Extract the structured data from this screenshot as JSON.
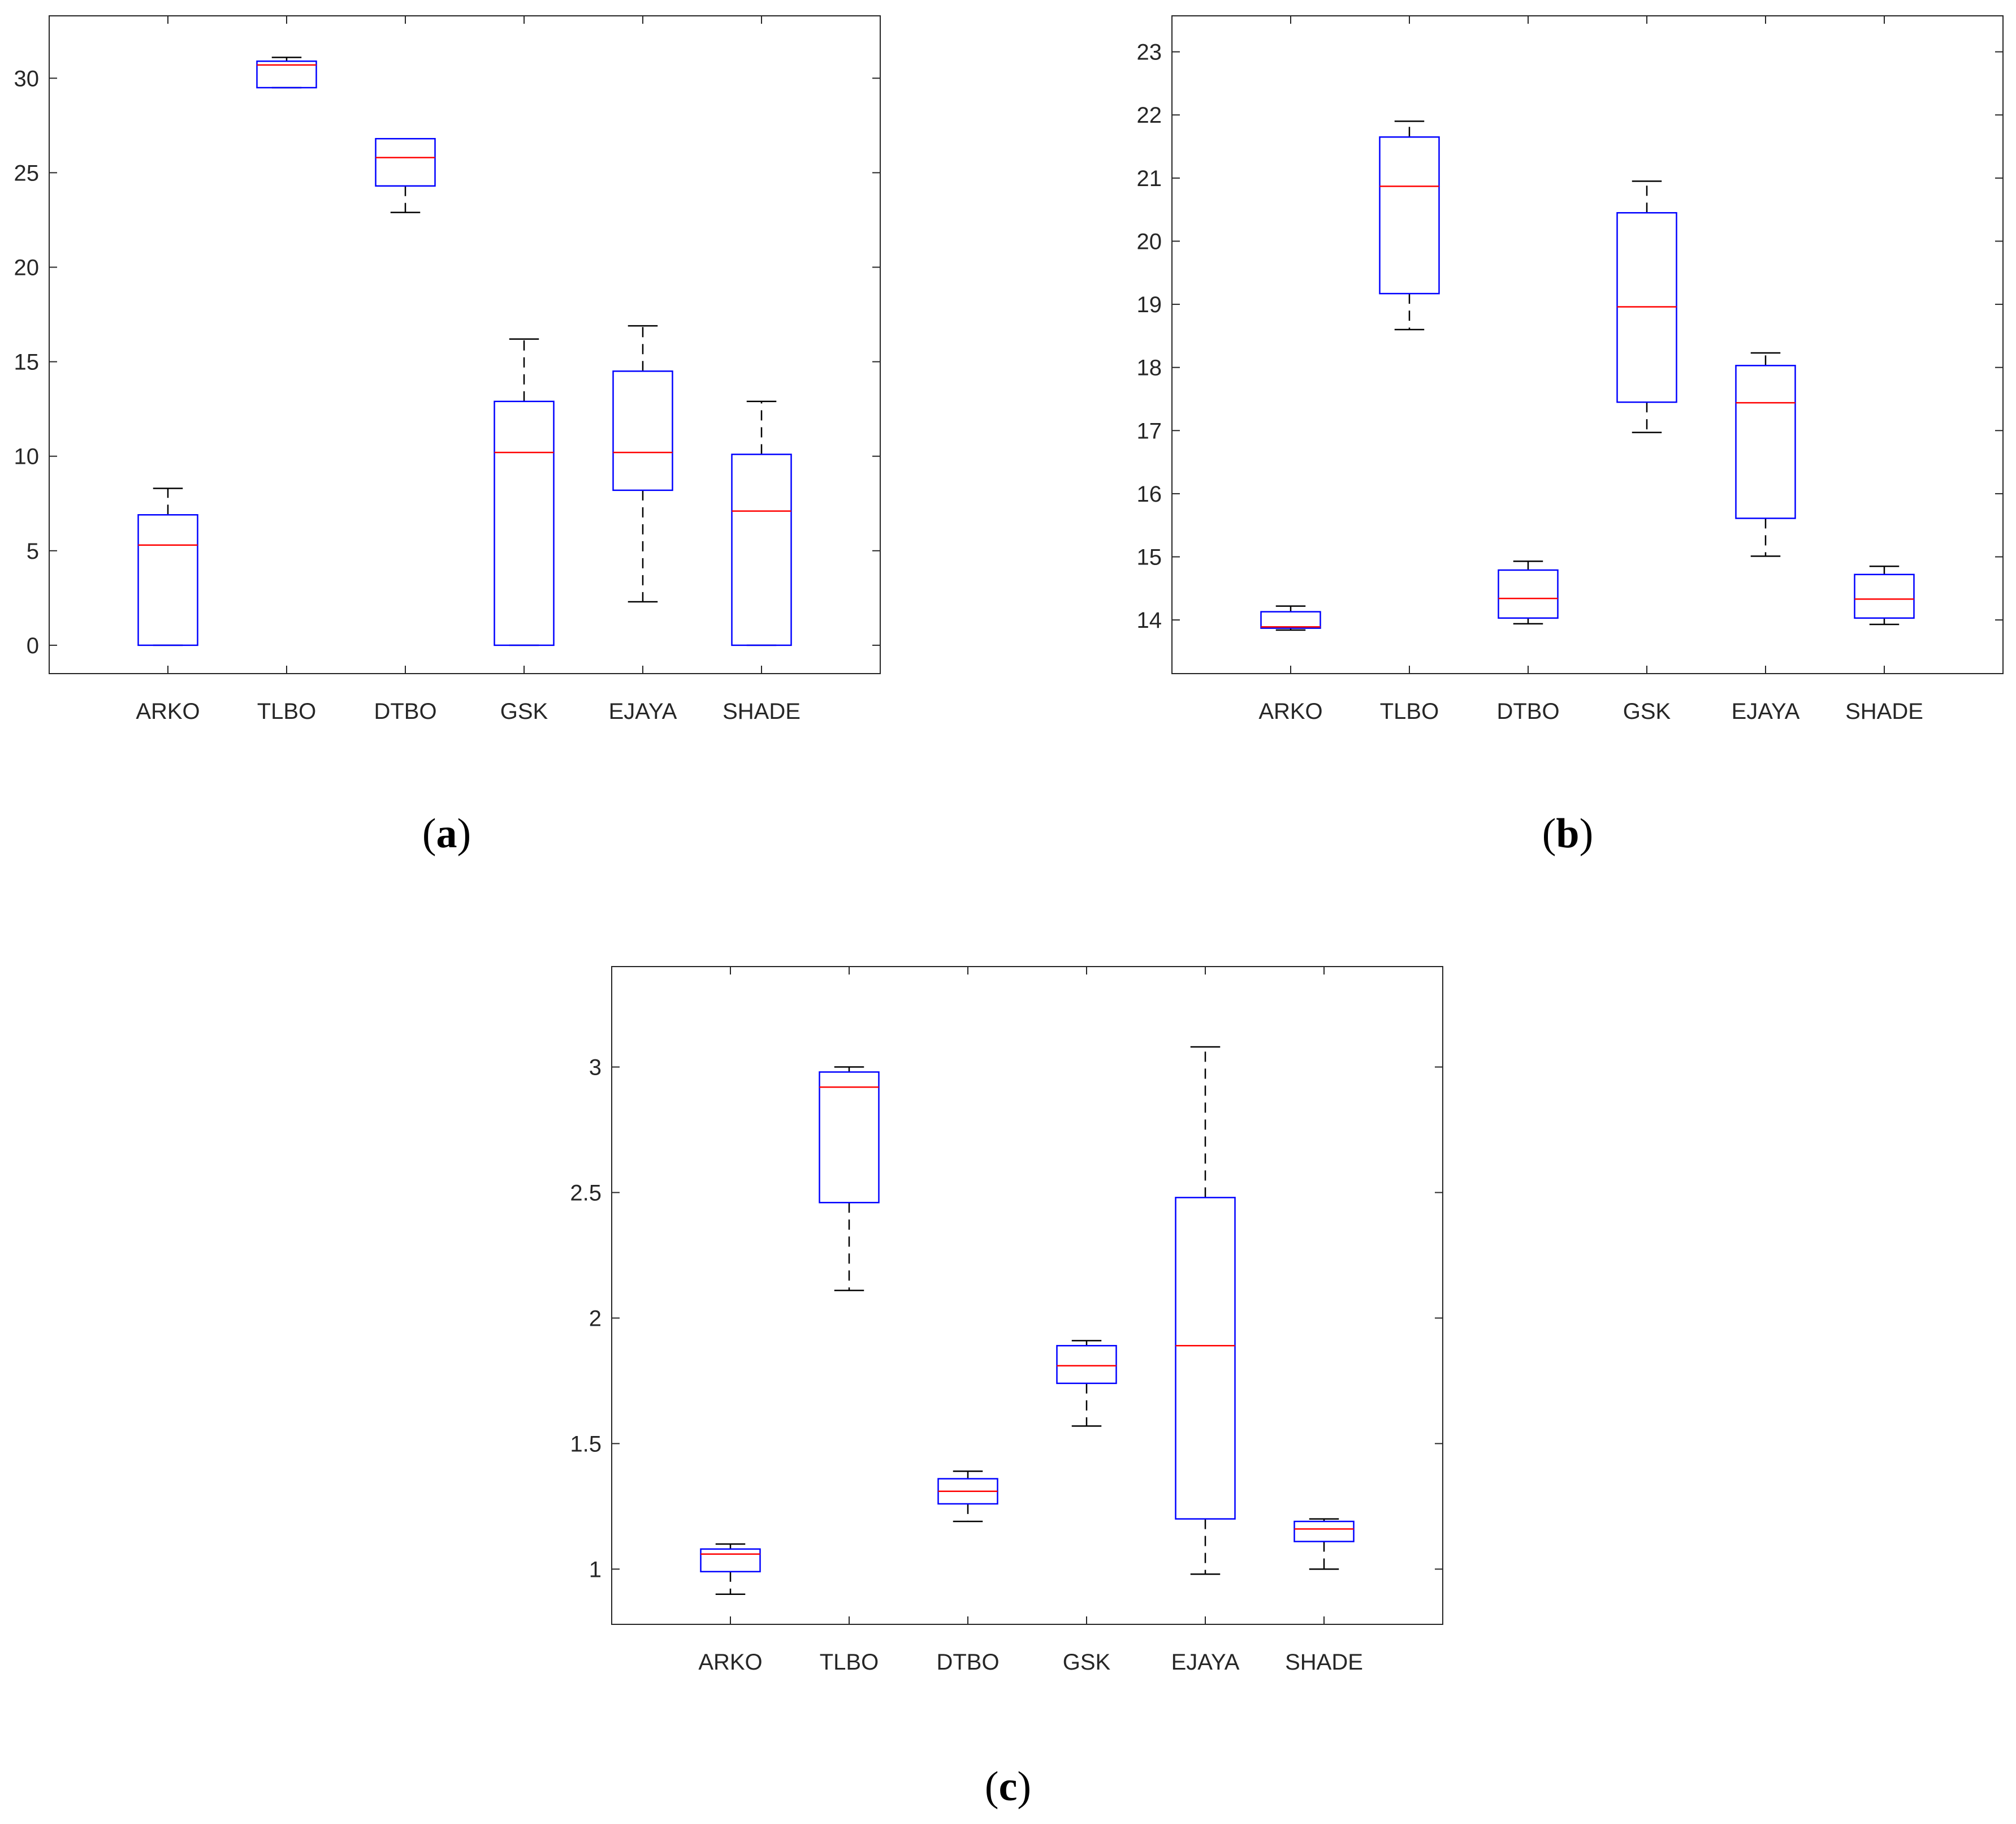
{
  "chart_data": [
    {
      "type": "boxplot",
      "panel_label": "a",
      "title": "",
      "xlabel": "",
      "ylabel": "",
      "categories": [
        "ARKO",
        "TLBO",
        "DTBO",
        "GSK",
        "EJAYA",
        "SHADE"
      ],
      "ylim": [
        -1.5,
        33.3
      ],
      "yticks": [
        0,
        5,
        10,
        15,
        20,
        25,
        30
      ],
      "boxes": [
        {
          "name": "ARKO",
          "whisker_low": 0.0,
          "q1": 0.0,
          "median": 5.3,
          "q3": 6.9,
          "whisker_high": 8.3
        },
        {
          "name": "TLBO",
          "whisker_low": 29.5,
          "q1": 29.5,
          "median": 30.7,
          "q3": 30.9,
          "whisker_high": 31.1
        },
        {
          "name": "DTBO",
          "whisker_low": 22.9,
          "q1": 24.3,
          "median": 25.8,
          "q3": 26.8,
          "whisker_high": 26.8
        },
        {
          "name": "GSK",
          "whisker_low": 0.0,
          "q1": 0.0,
          "median": 10.2,
          "q3": 12.9,
          "whisker_high": 16.2
        },
        {
          "name": "EJAYA",
          "whisker_low": 2.3,
          "q1": 8.2,
          "median": 10.2,
          "q3": 14.5,
          "whisker_high": 16.9
        },
        {
          "name": "SHADE",
          "whisker_low": 0.0,
          "q1": 0.0,
          "median": 7.1,
          "q3": 10.1,
          "whisker_high": 12.9
        }
      ]
    },
    {
      "type": "boxplot",
      "panel_label": "b",
      "title": "",
      "xlabel": "",
      "ylabel": "",
      "categories": [
        "ARKO",
        "TLBO",
        "DTBO",
        "GSK",
        "EJAYA",
        "SHADE"
      ],
      "ylim": [
        13.15,
        23.57
      ],
      "yticks": [
        14,
        15,
        16,
        17,
        18,
        19,
        20,
        21,
        22,
        23
      ],
      "boxes": [
        {
          "name": "ARKO",
          "whisker_low": 13.84,
          "q1": 13.87,
          "median": 13.89,
          "q3": 14.13,
          "whisker_high": 14.22
        },
        {
          "name": "TLBO",
          "whisker_low": 18.6,
          "q1": 19.17,
          "median": 20.87,
          "q3": 21.65,
          "whisker_high": 21.9
        },
        {
          "name": "DTBO",
          "whisker_low": 13.94,
          "q1": 14.03,
          "median": 14.34,
          "q3": 14.79,
          "whisker_high": 14.93
        },
        {
          "name": "GSK",
          "whisker_low": 16.97,
          "q1": 17.45,
          "median": 18.96,
          "q3": 20.45,
          "whisker_high": 20.95
        },
        {
          "name": "EJAYA",
          "whisker_low": 15.01,
          "q1": 15.61,
          "median": 17.44,
          "q3": 18.03,
          "whisker_high": 18.23
        },
        {
          "name": "SHADE",
          "whisker_low": 13.93,
          "q1": 14.03,
          "median": 14.33,
          "q3": 14.72,
          "whisker_high": 14.85
        }
      ]
    },
    {
      "type": "boxplot",
      "panel_label": "c",
      "title": "",
      "xlabel": "",
      "ylabel": "",
      "categories": [
        "ARKO",
        "TLBO",
        "DTBO",
        "GSK",
        "EJAYA",
        "SHADE"
      ],
      "ylim": [
        0.78,
        3.4
      ],
      "yticks": [
        1,
        1.5,
        2,
        2.5,
        3
      ],
      "boxes": [
        {
          "name": "ARKO",
          "whisker_low": 0.9,
          "q1": 0.99,
          "median": 1.06,
          "q3": 1.08,
          "whisker_high": 1.1
        },
        {
          "name": "TLBO",
          "whisker_low": 2.11,
          "q1": 2.46,
          "median": 2.92,
          "q3": 2.98,
          "whisker_high": 3.0
        },
        {
          "name": "DTBO",
          "whisker_low": 1.19,
          "q1": 1.26,
          "median": 1.31,
          "q3": 1.36,
          "whisker_high": 1.39
        },
        {
          "name": "GSK",
          "whisker_low": 1.57,
          "q1": 1.74,
          "median": 1.81,
          "q3": 1.89,
          "whisker_high": 1.91
        },
        {
          "name": "EJAYA",
          "whisker_low": 0.98,
          "q1": 1.2,
          "median": 1.89,
          "q3": 2.48,
          "whisker_high": 3.08
        },
        {
          "name": "SHADE",
          "whisker_low": 1.0,
          "q1": 1.11,
          "median": 1.16,
          "q3": 1.19,
          "whisker_high": 1.2
        }
      ]
    }
  ],
  "captions": [
    {
      "open": "(",
      "letter": "a",
      "close": ")"
    },
    {
      "open": "(",
      "letter": "b",
      "close": ")"
    },
    {
      "open": "(",
      "letter": "c",
      "close": ")"
    }
  ],
  "colors": {
    "box": "#0000ff",
    "median": "#ff0000",
    "whisker": "#000000",
    "axis": "#262626"
  }
}
